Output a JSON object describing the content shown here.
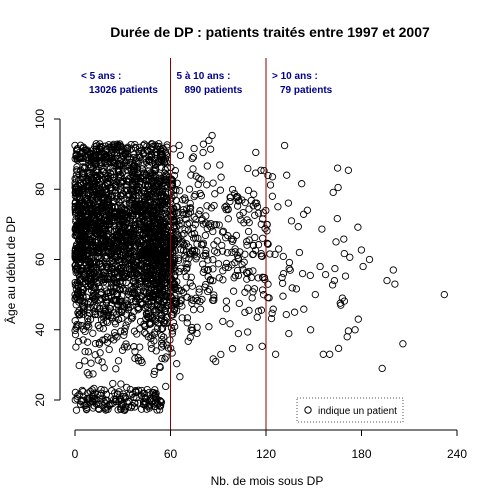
{
  "chart_data": {
    "type": "scatter",
    "title": "Durée de DP : patients traités entre 1997 et 2007",
    "xlabel": "Nb. de mois sous DP",
    "ylabel": "Âge au début de DP",
    "xlim": [
      0,
      240
    ],
    "ylim": [
      20,
      100
    ],
    "x_ticks": [
      "0",
      "60",
      "120",
      "180",
      "240"
    ],
    "y_ticks": [
      "20",
      "40",
      "60",
      "80",
      "100"
    ],
    "grid": false,
    "legend": {
      "text": "indique un patient",
      "position": "bottom-right"
    },
    "vlines": [
      {
        "x": 60,
        "color": "#8b0000"
      },
      {
        "x": 120,
        "color": "#8b0000"
      }
    ],
    "annotations": [
      {
        "line1": "< 5 ans :",
        "line2": "13026 patients",
        "x_range": [
          0,
          60
        ]
      },
      {
        "line1": "5 à 10 ans :",
        "line2": "890 patients",
        "x_range": [
          60,
          120
        ]
      },
      {
        "line1": "> 10 ans :",
        "line2": "79 patients",
        "x_range": [
          120,
          240
        ]
      }
    ],
    "outlier_points": [
      {
        "x": 232,
        "y": 50
      },
      {
        "x": 206,
        "y": 36
      },
      {
        "x": 200,
        "y": 57
      },
      {
        "x": 201,
        "y": 53
      },
      {
        "x": 196,
        "y": 54
      },
      {
        "x": 193,
        "y": 29
      },
      {
        "x": 185,
        "y": 60
      },
      {
        "x": 181,
        "y": 58
      },
      {
        "x": 178,
        "y": 43
      },
      {
        "x": 176,
        "y": 40
      },
      {
        "x": 171,
        "y": 38
      },
      {
        "x": 168,
        "y": 49
      },
      {
        "x": 167,
        "y": 47
      },
      {
        "x": 164,
        "y": 65
      },
      {
        "x": 163,
        "y": 54
      },
      {
        "x": 160,
        "y": 33
      },
      {
        "x": 156,
        "y": 33
      },
      {
        "x": 154,
        "y": 58
      },
      {
        "x": 151,
        "y": 50
      },
      {
        "x": 148,
        "y": 40
      },
      {
        "x": 146,
        "y": 74
      },
      {
        "x": 143,
        "y": 56
      },
      {
        "x": 141,
        "y": 62
      },
      {
        "x": 138,
        "y": 45
      },
      {
        "x": 136,
        "y": 71
      },
      {
        "x": 133,
        "y": 84
      },
      {
        "x": 131,
        "y": 56
      },
      {
        "x": 128,
        "y": 63
      },
      {
        "x": 126,
        "y": 33
      },
      {
        "x": 124,
        "y": 78
      }
    ]
  }
}
